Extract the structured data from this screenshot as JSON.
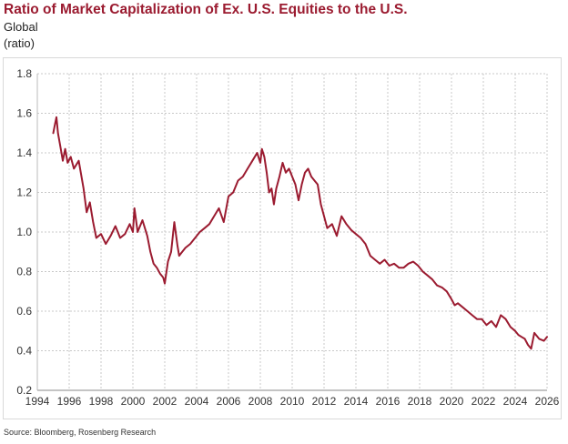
{
  "header": {
    "title": "Ratio of Market Capitalization of Ex. U.S. Equities to the U.S.",
    "subtitle": "Global",
    "unit": "(ratio)"
  },
  "footer": {
    "source": "Source: Bloomberg, Rosenberg Research"
  },
  "colors": {
    "title": "#9b1b30",
    "line": "#9b1b30",
    "grid": "#c8c8c8"
  },
  "chart_data": {
    "type": "line",
    "title": "Ratio of Market Capitalization of Ex. U.S. Equities to the U.S.",
    "subtitle": "Global",
    "ylabel": "(ratio)",
    "xlabel": "",
    "xlim": [
      1994,
      2026
    ],
    "ylim": [
      0.2,
      1.8
    ],
    "xticks": [
      1994,
      1996,
      1998,
      2000,
      2002,
      2004,
      2006,
      2008,
      2010,
      2012,
      2014,
      2016,
      2018,
      2020,
      2022,
      2024,
      2026
    ],
    "yticks": [
      0.2,
      0.4,
      0.6,
      0.8,
      1.0,
      1.2,
      1.4,
      1.6,
      1.8
    ],
    "ytick_labels": [
      "0.2",
      "0.4",
      "0.6",
      "0.8",
      "1.0",
      "1.2",
      "1.4",
      "1.6",
      "1.8"
    ],
    "grid": true,
    "series": [
      {
        "name": "Global",
        "x": [
          1995.0,
          1995.1,
          1995.2,
          1995.3,
          1995.45,
          1995.6,
          1995.75,
          1995.9,
          1996.1,
          1996.3,
          1996.6,
          1996.9,
          1997.1,
          1997.3,
          1997.5,
          1997.7,
          1998.0,
          1998.3,
          1998.6,
          1998.9,
          1999.2,
          1999.5,
          1999.8,
          2000.0,
          2000.1,
          2000.3,
          2000.6,
          2000.9,
          2001.1,
          2001.3,
          2001.5,
          2001.7,
          2001.9,
          2002.0,
          2002.2,
          2002.4,
          2002.6,
          2002.8,
          2002.9,
          2003.1,
          2003.3,
          2003.6,
          2003.9,
          2004.2,
          2004.5,
          2004.8,
          2005.1,
          2005.4,
          2005.7,
          2006.0,
          2006.3,
          2006.6,
          2006.9,
          2007.2,
          2007.5,
          2007.8,
          2008.0,
          2008.1,
          2008.25,
          2008.4,
          2008.55,
          2008.7,
          2008.85,
          2009.0,
          2009.2,
          2009.4,
          2009.6,
          2009.8,
          2010.0,
          2010.2,
          2010.4,
          2010.6,
          2010.8,
          2011.0,
          2011.2,
          2011.4,
          2011.6,
          2011.8,
          2012.0,
          2012.2,
          2012.5,
          2012.8,
          2013.1,
          2013.4,
          2013.7,
          2014.0,
          2014.3,
          2014.6,
          2014.9,
          2015.2,
          2015.5,
          2015.8,
          2016.1,
          2016.4,
          2016.7,
          2017.0,
          2017.3,
          2017.6,
          2017.9,
          2018.2,
          2018.5,
          2018.8,
          2019.1,
          2019.4,
          2019.7,
          2020.0,
          2020.2,
          2020.4,
          2020.7,
          2021.0,
          2021.3,
          2021.6,
          2021.9,
          2022.2,
          2022.5,
          2022.8,
          2023.1,
          2023.4,
          2023.7,
          2024.0,
          2024.2,
          2024.4,
          2024.6,
          2024.8,
          2025.0,
          2025.2,
          2025.5,
          2025.8,
          2026.0
        ],
        "values": [
          1.5,
          1.54,
          1.58,
          1.5,
          1.43,
          1.36,
          1.42,
          1.35,
          1.38,
          1.32,
          1.36,
          1.22,
          1.1,
          1.15,
          1.05,
          0.97,
          0.99,
          0.94,
          0.98,
          1.03,
          0.97,
          0.99,
          1.04,
          1.0,
          1.12,
          1.0,
          1.06,
          0.98,
          0.9,
          0.84,
          0.82,
          0.79,
          0.77,
          0.74,
          0.85,
          0.9,
          1.05,
          0.93,
          0.88,
          0.9,
          0.92,
          0.94,
          0.97,
          1.0,
          1.02,
          1.04,
          1.08,
          1.12,
          1.05,
          1.18,
          1.2,
          1.26,
          1.28,
          1.32,
          1.36,
          1.4,
          1.35,
          1.42,
          1.38,
          1.3,
          1.2,
          1.22,
          1.14,
          1.22,
          1.28,
          1.35,
          1.3,
          1.32,
          1.28,
          1.24,
          1.16,
          1.24,
          1.3,
          1.32,
          1.28,
          1.26,
          1.24,
          1.14,
          1.08,
          1.02,
          1.04,
          0.98,
          1.08,
          1.04,
          1.01,
          0.99,
          0.97,
          0.94,
          0.88,
          0.86,
          0.84,
          0.86,
          0.83,
          0.84,
          0.82,
          0.82,
          0.84,
          0.85,
          0.83,
          0.8,
          0.78,
          0.76,
          0.73,
          0.72,
          0.7,
          0.66,
          0.63,
          0.64,
          0.62,
          0.6,
          0.58,
          0.56,
          0.56,
          0.53,
          0.55,
          0.52,
          0.58,
          0.56,
          0.52,
          0.5,
          0.48,
          0.47,
          0.46,
          0.43,
          0.41,
          0.49,
          0.46,
          0.45,
          0.47
        ]
      }
    ]
  }
}
